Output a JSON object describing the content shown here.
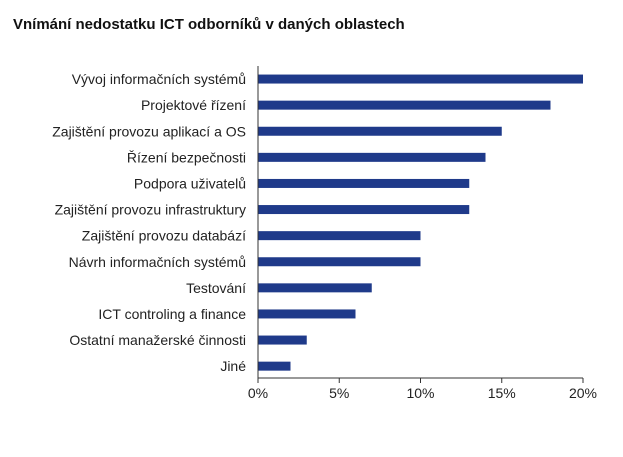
{
  "chart_data": {
    "type": "bar",
    "orientation": "horizontal",
    "title": "Vnímání nedostatku ICT odborníků v daných oblastech",
    "categories": [
      "Vývoj informačních systémů",
      "Projektové řízení",
      "Zajištění provozu aplikací a OS",
      "Řízení bezpečnosti",
      "Podpora uživatelů",
      "Zajištění provozu infrastruktury",
      "Zajištění provozu databází",
      "Návrh informačních systémů",
      "Testování",
      "ICT controling a finance",
      "Ostatní manažerské činnosti",
      "Jiné"
    ],
    "values": [
      20,
      18,
      15,
      14,
      13,
      13,
      10,
      10,
      7,
      6,
      3,
      2
    ],
    "xlim": [
      0,
      20
    ],
    "xticks": [
      "0%",
      "5%",
      "10%",
      "15%",
      "20%"
    ],
    "bar_color": "#1f3a8a",
    "grid": false,
    "legend": "none"
  }
}
